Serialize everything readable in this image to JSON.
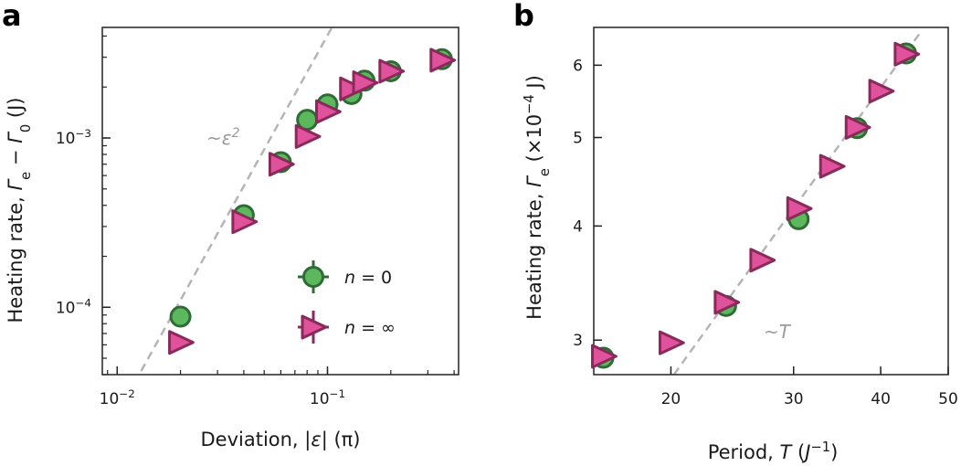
{
  "chart_data": [
    {
      "panel": "a",
      "type": "scatter",
      "xlabel": "Deviation, |ε| (π)",
      "ylabel": "Heating rate, Γe − Γ0 (J)",
      "xscale": "log",
      "yscale": "log",
      "xlim": [
        0.0085,
        0.42
      ],
      "ylim": [
        4e-05,
        0.0045
      ],
      "xticks": [
        {
          "value": 0.01,
          "label": "10−2"
        },
        {
          "value": 0.1,
          "label": "10−1"
        }
      ],
      "yticks": [
        {
          "value": 0.0001,
          "label": "10−4"
        },
        {
          "value": 0.001,
          "label": "10−3"
        }
      ],
      "series": [
        {
          "name": "n = 0",
          "marker": "circle",
          "color": "#5cb85c",
          "edgecolor": "#2e6b35",
          "points": [
            {
              "x": 0.02,
              "y": 8.8e-05
            },
            {
              "x": 0.04,
              "y": 0.00035
            },
            {
              "x": 0.06,
              "y": 0.00072
            },
            {
              "x": 0.08,
              "y": 0.00128
            },
            {
              "x": 0.1,
              "y": 0.00158
            },
            {
              "x": 0.13,
              "y": 0.00182
            },
            {
              "x": 0.15,
              "y": 0.00218
            },
            {
              "x": 0.2,
              "y": 0.00248
            },
            {
              "x": 0.35,
              "y": 0.00292
            }
          ]
        },
        {
          "name": "n = ∞",
          "marker": "triangle-right",
          "color": "#e0529c",
          "edgecolor": "#8a2a5a",
          "points": [
            {
              "x": 0.02,
              "y": 6.2e-05
            },
            {
              "x": 0.04,
              "y": 0.00032
            },
            {
              "x": 0.06,
              "y": 0.0007
            },
            {
              "x": 0.08,
              "y": 0.00102
            },
            {
              "x": 0.1,
              "y": 0.00143
            },
            {
              "x": 0.13,
              "y": 0.00195
            },
            {
              "x": 0.15,
              "y": 0.00212
            },
            {
              "x": 0.2,
              "y": 0.00248
            },
            {
              "x": 0.35,
              "y": 0.00288
            }
          ]
        }
      ],
      "fit_line": {
        "label": "~ε2",
        "style": "dashed",
        "color": "#b5b5b5",
        "points": [
          {
            "x": 0.013,
            "y": 4.2e-05
          },
          {
            "x": 0.105,
            "y": 0.0045
          }
        ]
      },
      "legend": {
        "position": "lower-right"
      }
    },
    {
      "panel": "b",
      "type": "scatter",
      "xlabel": "Period, T (J−1)",
      "ylabel": "Heating rate, Γe (×10−4 J)",
      "xscale": "log",
      "yscale": "log",
      "xlim": [
        15.5,
        50
      ],
      "ylim": [
        2.75,
        6.6
      ],
      "xticks": [
        {
          "value": 20,
          "label": "20"
        },
        {
          "value": 30,
          "label": "30"
        },
        {
          "value": 40,
          "label": "40"
        },
        {
          "value": 50,
          "label": "50"
        }
      ],
      "yticks": [
        {
          "value": 3,
          "label": "3"
        },
        {
          "value": 4,
          "label": "4"
        },
        {
          "value": 5,
          "label": "5"
        },
        {
          "value": 6,
          "label": "6"
        }
      ],
      "series": [
        {
          "name": "n = 0",
          "marker": "circle",
          "color": "#5cb85c",
          "edgecolor": "#2e6b35",
          "points": [
            {
              "x": 16.0,
              "y": 2.87
            },
            {
              "x": 24.0,
              "y": 3.27
            },
            {
              "x": 30.5,
              "y": 4.07
            },
            {
              "x": 37.0,
              "y": 5.12
            },
            {
              "x": 43.5,
              "y": 6.18
            }
          ]
        },
        {
          "name": "n = ∞",
          "marker": "triangle-right",
          "color": "#e0529c",
          "edgecolor": "#8a2a5a",
          "points": [
            {
              "x": 16.0,
              "y": 2.88
            },
            {
              "x": 20.0,
              "y": 2.98
            },
            {
              "x": 24.0,
              "y": 3.3
            },
            {
              "x": 27.0,
              "y": 3.67
            },
            {
              "x": 30.5,
              "y": 4.18
            },
            {
              "x": 34.0,
              "y": 4.65
            },
            {
              "x": 37.0,
              "y": 5.13
            },
            {
              "x": 40.0,
              "y": 5.62
            },
            {
              "x": 43.5,
              "y": 6.17
            }
          ]
        }
      ],
      "fit_line": {
        "label": "~T",
        "style": "dashed",
        "color": "#b5b5b5",
        "points": [
          {
            "x": 20.2,
            "y": 2.75
          },
          {
            "x": 45.5,
            "y": 6.5
          }
        ]
      }
    }
  ]
}
